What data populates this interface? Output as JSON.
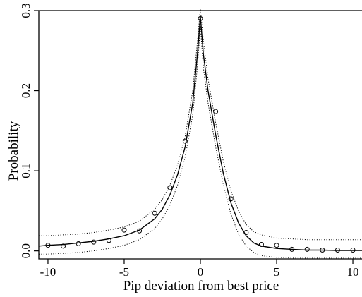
{
  "chart_data": {
    "type": "scatter",
    "title": "",
    "xlabel": "Pip deviation from best price",
    "ylabel": "Probability",
    "xlim": [
      -10.6,
      10.6
    ],
    "ylim": [
      -0.01,
      0.3
    ],
    "grid": false,
    "legend": "none",
    "xticks": [
      {
        "value": -10,
        "label": "-10"
      },
      {
        "value": -5,
        "label": "-5"
      },
      {
        "value": 0,
        "label": "0"
      },
      {
        "value": 5,
        "label": "5"
      },
      {
        "value": 10,
        "label": "10"
      }
    ],
    "yticks": [
      {
        "value": 0.0,
        "label": "0.0"
      },
      {
        "value": 0.1,
        "label": "0.1"
      },
      {
        "value": 0.2,
        "label": "0.2"
      },
      {
        "value": 0.3,
        "label": "0.3"
      }
    ],
    "series": [
      {
        "kind": "points",
        "x": [
          -10,
          -9,
          -8,
          -7,
          -6,
          -5,
          -4,
          -3,
          -2,
          -1,
          0,
          1,
          2,
          3,
          4,
          5,
          6,
          7,
          8,
          9,
          10
        ],
        "y": [
          0.007,
          0.006,
          0.009,
          0.011,
          0.013,
          0.026,
          0.025,
          0.047,
          0.079,
          0.137,
          0.29,
          0.174,
          0.065,
          0.023,
          0.008,
          0.007,
          0.002,
          0.002,
          0.001,
          0.001,
          0.001
        ]
      },
      {
        "kind": "fit",
        "x": [
          -10.6,
          -10,
          -9,
          -8,
          -7,
          -6,
          -5,
          -4,
          -3,
          -2.5,
          -2,
          -1.5,
          -1,
          -0.5,
          -0.2,
          0,
          0.2,
          0.5,
          1,
          1.5,
          2,
          2.5,
          3,
          3.5,
          4,
          5,
          6,
          7,
          8,
          9,
          10,
          10.6
        ],
        "y": [
          0.006,
          0.007,
          0.008,
          0.01,
          0.012,
          0.015,
          0.019,
          0.026,
          0.04,
          0.052,
          0.07,
          0.095,
          0.13,
          0.185,
          0.245,
          0.292,
          0.245,
          0.2,
          0.145,
          0.097,
          0.06,
          0.035,
          0.019,
          0.01,
          0.006,
          0.003,
          0.002,
          0.001,
          0.001,
          0.0005,
          0.0005,
          0.0005
        ]
      },
      {
        "kind": "upper-band",
        "x": [
          -10.6,
          -10,
          -9,
          -8,
          -7,
          -6,
          -5,
          -4,
          -3,
          -2.5,
          -2,
          -1.5,
          -1,
          -0.5,
          -0.2,
          0,
          0.2,
          0.5,
          1,
          1.5,
          2,
          2.5,
          3,
          3.5,
          4,
          5,
          6,
          7,
          8,
          9,
          10,
          10.6
        ],
        "y": [
          0.019,
          0.019,
          0.02,
          0.021,
          0.023,
          0.026,
          0.03,
          0.037,
          0.052,
          0.064,
          0.082,
          0.107,
          0.143,
          0.2,
          0.26,
          0.302,
          0.262,
          0.215,
          0.16,
          0.112,
          0.075,
          0.05,
          0.033,
          0.024,
          0.02,
          0.016,
          0.015,
          0.014,
          0.014,
          0.014,
          0.014,
          0.014
        ]
      },
      {
        "kind": "lower-band",
        "x": [
          -10.6,
          -10,
          -9,
          -8,
          -7,
          -6,
          -5,
          -4,
          -3,
          -2.5,
          -2,
          -1.5,
          -1,
          -0.5,
          -0.2,
          0,
          0.2,
          0.5,
          1,
          1.5,
          2,
          2.5,
          3,
          3.5,
          4,
          5,
          6,
          7,
          8,
          9,
          10,
          10.6
        ],
        "y": [
          -0.004,
          -0.004,
          -0.003,
          -0.002,
          0.0,
          0.003,
          0.007,
          0.014,
          0.028,
          0.04,
          0.057,
          0.082,
          0.117,
          0.17,
          0.23,
          0.28,
          0.228,
          0.185,
          0.13,
          0.083,
          0.046,
          0.021,
          0.006,
          -0.002,
          -0.006,
          -0.008,
          -0.009,
          -0.009,
          -0.009,
          -0.009,
          -0.009,
          -0.009
        ]
      }
    ]
  }
}
